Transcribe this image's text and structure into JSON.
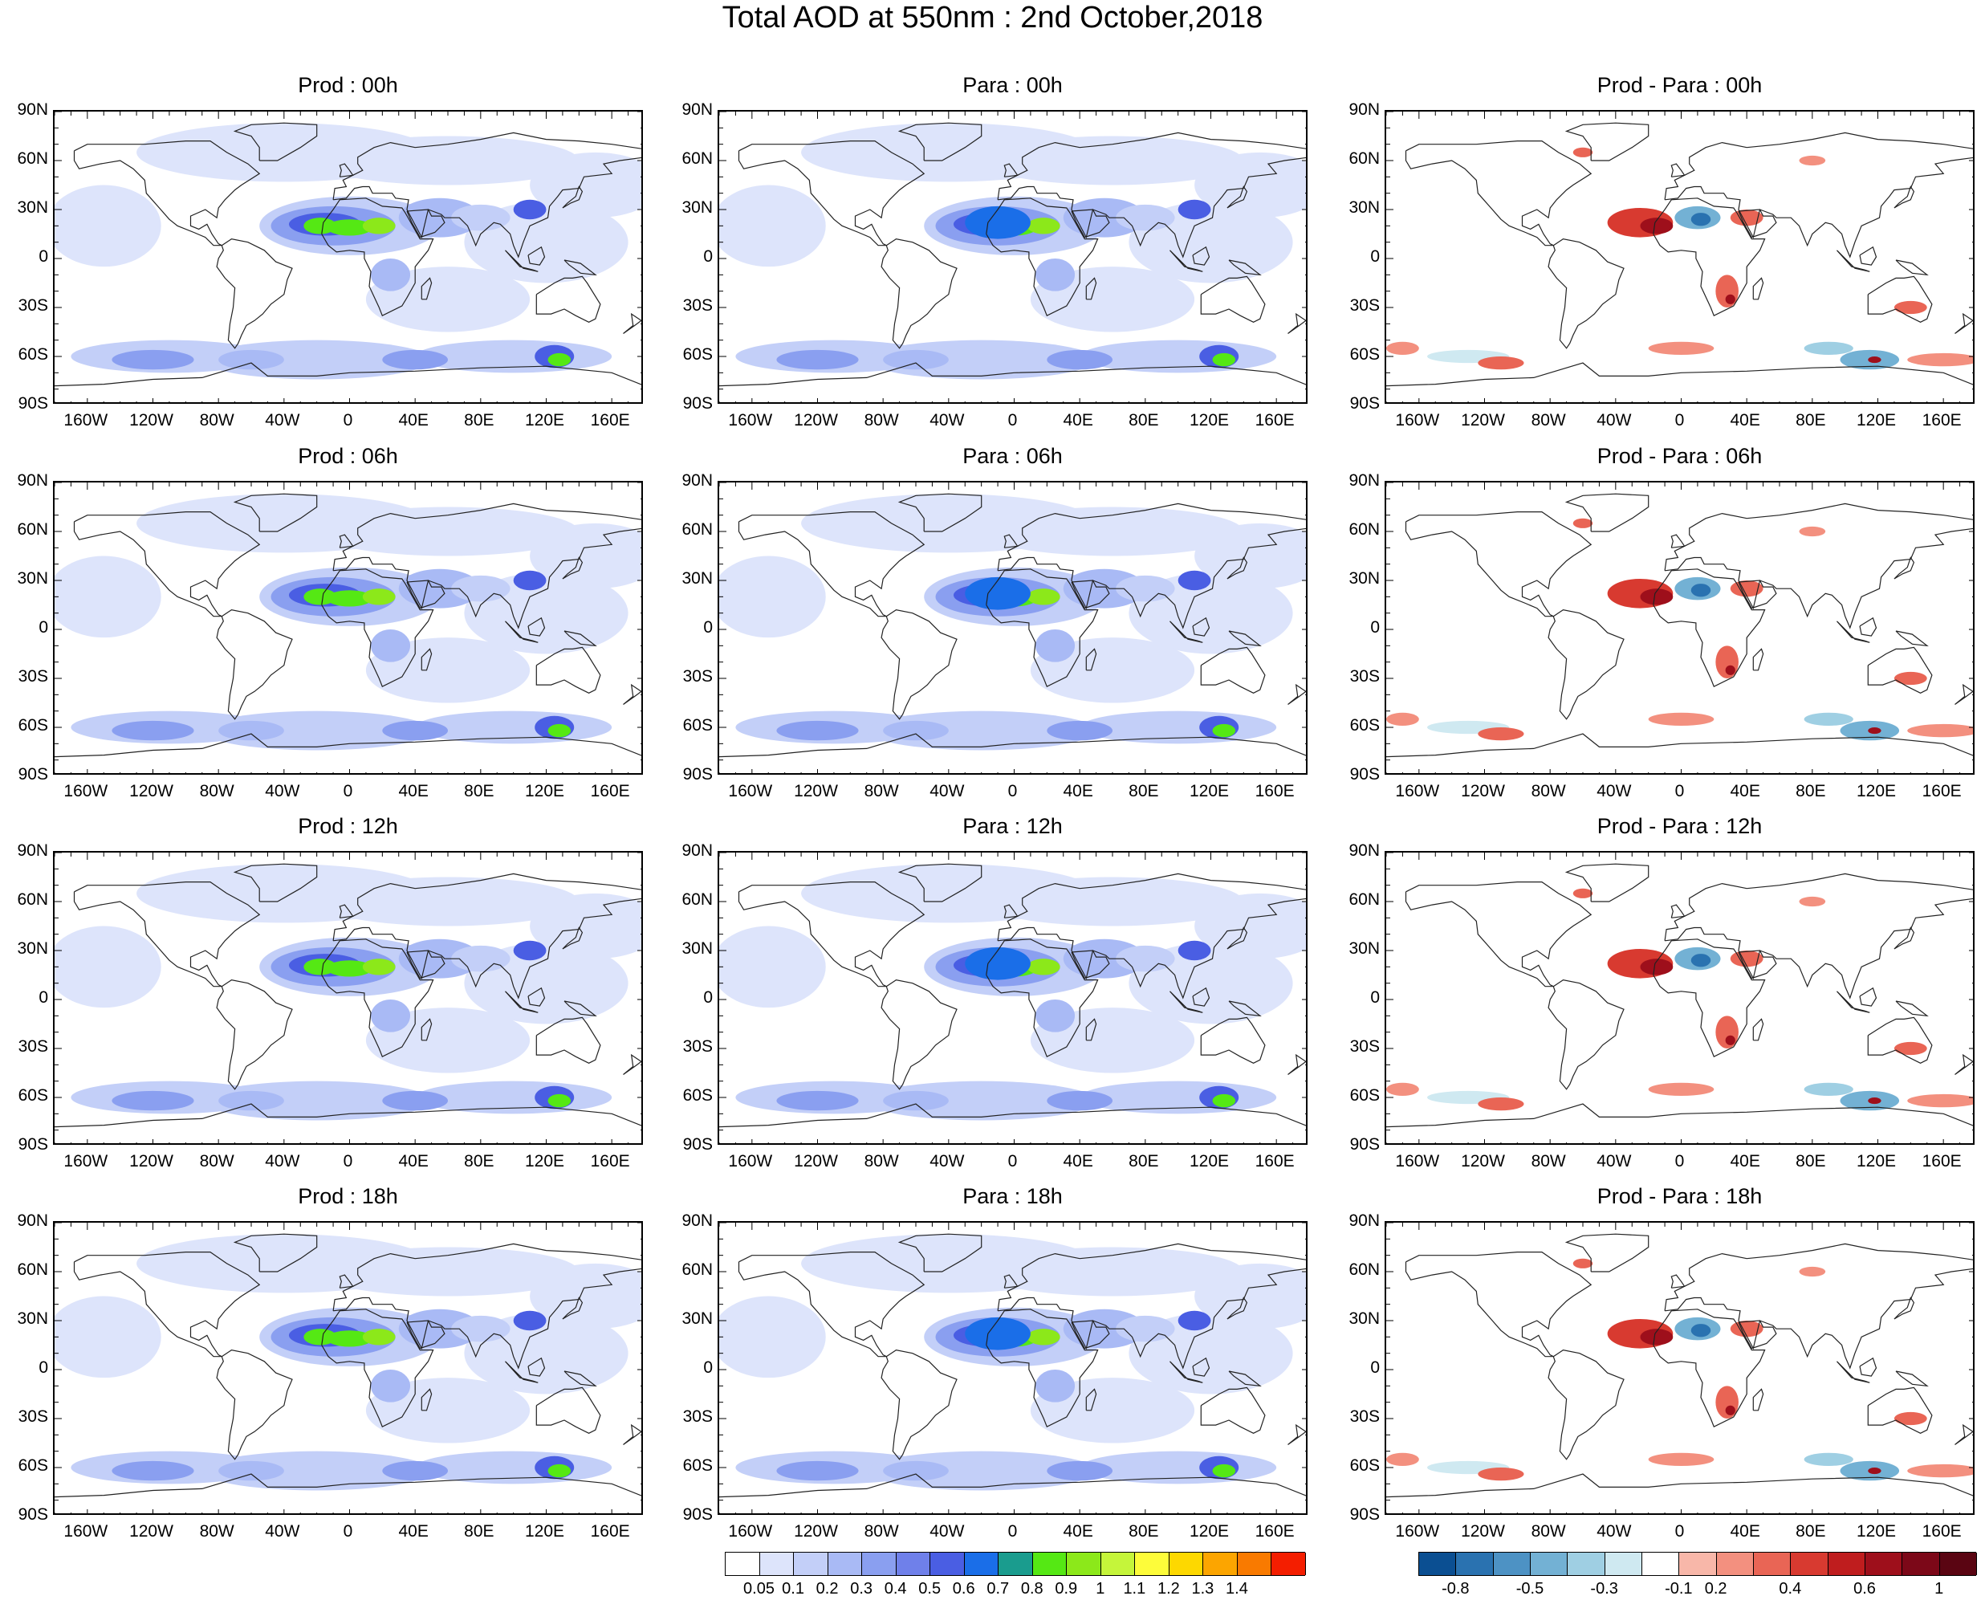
{
  "figure": {
    "title": "Total AOD at 550nm : 2nd October,2018"
  },
  "panels": [
    {
      "title": "Prod : 00h",
      "kind": "aod",
      "row": 0,
      "col": 0
    },
    {
      "title": "Para : 00h",
      "kind": "aod",
      "row": 0,
      "col": 1
    },
    {
      "title": "Prod - Para : 00h",
      "kind": "diff",
      "row": 0,
      "col": 2
    },
    {
      "title": "Prod : 06h",
      "kind": "aod",
      "row": 1,
      "col": 0
    },
    {
      "title": "Para : 06h",
      "kind": "aod",
      "row": 1,
      "col": 1
    },
    {
      "title": "Prod - Para : 06h",
      "kind": "diff",
      "row": 1,
      "col": 2
    },
    {
      "title": "Prod : 12h",
      "kind": "aod",
      "row": 2,
      "col": 0
    },
    {
      "title": "Para : 12h",
      "kind": "aod",
      "row": 2,
      "col": 1
    },
    {
      "title": "Prod - Para : 12h",
      "kind": "diff",
      "row": 2,
      "col": 2
    },
    {
      "title": "Prod : 18h",
      "kind": "aod",
      "row": 3,
      "col": 0
    },
    {
      "title": "Para : 18h",
      "kind": "aod",
      "row": 3,
      "col": 1
    },
    {
      "title": "Prod - Para : 18h",
      "kind": "diff",
      "row": 3,
      "col": 2
    }
  ],
  "axes": {
    "lat_labels": [
      "90N",
      "60N",
      "30N",
      "0",
      "30S",
      "60S",
      "90S"
    ],
    "lon_labels": [
      "160W",
      "120W",
      "80W",
      "40W",
      "0",
      "40E",
      "80E",
      "120E",
      "160E"
    ],
    "lon_values": [
      -160,
      -120,
      -80,
      -40,
      0,
      40,
      80,
      120,
      160
    ],
    "lat_values": [
      90,
      60,
      30,
      0,
      -30,
      -60,
      -90
    ]
  },
  "aod_colorbar": {
    "labels": [
      "0.05",
      "0.1",
      "0.2",
      "0.3",
      "0.4",
      "0.5",
      "0.6",
      "0.7",
      "0.8",
      "0.9",
      "1",
      "1.1",
      "1.2",
      "1.3",
      "1.4"
    ],
    "colors": [
      "#ffffff",
      "#dde4fb",
      "#c3cff8",
      "#a9baf5",
      "#8a9ff0",
      "#6f80ea",
      "#4a5ee3",
      "#1a6ee8",
      "#1a9c8e",
      "#55e814",
      "#8ce81a",
      "#c5f53a",
      "#fdfc3a",
      "#fdd800",
      "#fca500",
      "#f97a00",
      "#f41e00"
    ]
  },
  "diff_colorbar": {
    "labels": [
      "-0.8",
      "-0.5",
      "-0.3",
      "-0.1",
      "0.2",
      "0.4",
      "0.6",
      "1"
    ],
    "colors": [
      "#0b4f92",
      "#2a72b0",
      "#4d92c4",
      "#73b1d4",
      "#9fcfe3",
      "#cfe9f1",
      "#ffffff",
      "#f8b7a9",
      "#f3907f",
      "#e96555",
      "#d83a30",
      "#bf1d1e",
      "#9e0f1b",
      "#7c0818",
      "#5a0512"
    ]
  }
}
